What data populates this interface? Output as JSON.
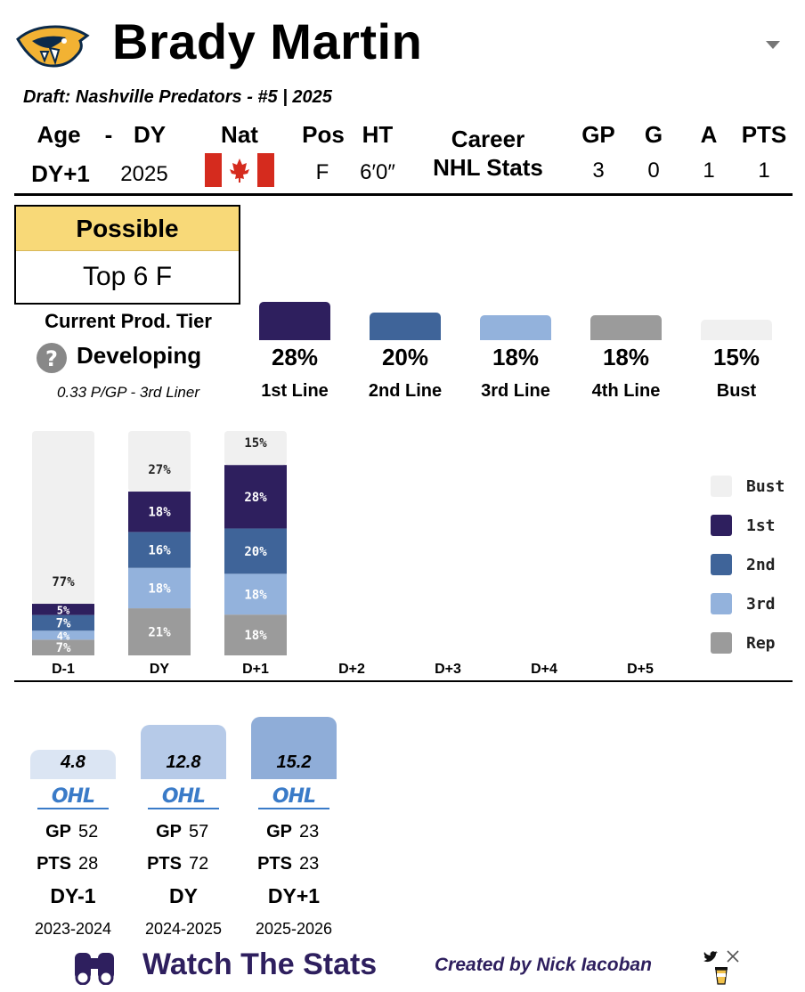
{
  "header": {
    "player_name": "Brady Martin",
    "draft_line": "Draft: Nashville Predators - #5 | 2025",
    "team_logo_icon": "predators-logo-icon",
    "dropdown_icon": "chevron-down-icon"
  },
  "bio": {
    "age_label": "Age",
    "dash": "-",
    "dy_label": "DY",
    "age_value": "DY+1",
    "dy_value": "2025",
    "nat_label": "Nat",
    "nat_icon": "canada-flag-icon",
    "pos_label": "Pos",
    "pos_value": "F",
    "ht_label": "HT",
    "ht_value": "6′0″"
  },
  "career": {
    "label_line1": "Career",
    "label_line2": "NHL Stats",
    "headers": [
      "GP",
      "G",
      "A",
      "PTS"
    ],
    "values": [
      "3",
      "0",
      "1",
      "1"
    ]
  },
  "possible": {
    "label": "Possible",
    "value": "Top 6 F"
  },
  "prod_tier": {
    "label": "Current Prod. Tier",
    "status_icon": "question-circle-icon",
    "status": "Developing",
    "detail": "0.33 P/GP - 3rd Liner"
  },
  "tier_probs": [
    {
      "label": "1st Line",
      "pct_text": "28%",
      "value": 28,
      "color": "#2e1f5e"
    },
    {
      "label": "2nd Line",
      "pct_text": "20%",
      "value": 20,
      "color": "#3f6499"
    },
    {
      "label": "3rd Line",
      "pct_text": "18%",
      "value": 18,
      "color": "#93b2dc"
    },
    {
      "label": "4th Line",
      "pct_text": "18%",
      "value": 18,
      "color": "#9b9b9b"
    },
    {
      "label": "Bust",
      "pct_text": "15%",
      "value": 15,
      "color": "#f0f0f0"
    }
  ],
  "chart_data": {
    "type": "bar",
    "stacked": true,
    "title": "",
    "categories": [
      "D-1",
      "DY",
      "D+1",
      "D+2",
      "D+3",
      "D+4",
      "D+5"
    ],
    "series": [
      {
        "name": "Rep",
        "color": "#9b9b9b",
        "values": [
          7,
          21,
          18,
          null,
          null,
          null,
          null
        ],
        "labels": [
          "7%",
          "21%",
          "18%",
          "",
          "",
          "",
          ""
        ]
      },
      {
        "name": "3rd",
        "color": "#93b2dc",
        "values": [
          4,
          18,
          18,
          null,
          null,
          null,
          null
        ],
        "labels": [
          "4%",
          "18%",
          "18%",
          "",
          "",
          "",
          ""
        ]
      },
      {
        "name": "2nd",
        "color": "#3f6499",
        "values": [
          7,
          16,
          20,
          null,
          null,
          null,
          null
        ],
        "labels": [
          "7%",
          "16%",
          "20%",
          "",
          "",
          "",
          ""
        ]
      },
      {
        "name": "1st",
        "color": "#2e1f5e",
        "values": [
          5,
          18,
          28,
          null,
          null,
          null,
          null
        ],
        "labels": [
          "5%",
          "18%",
          "28%",
          "",
          "",
          "",
          ""
        ]
      },
      {
        "name": "Bust",
        "color": "#f0f0f0",
        "values": [
          77,
          27,
          15,
          null,
          null,
          null,
          null
        ],
        "labels": [
          "77%",
          "27%",
          "15%",
          "",
          "",
          "",
          ""
        ]
      }
    ],
    "legend": [
      "Bust",
      "1st",
      "2nd",
      "3rd",
      "Rep"
    ],
    "legend_position": "right",
    "ylim": [
      0,
      100
    ]
  },
  "seasons": [
    {
      "score": "4.8",
      "score_value": 4.8,
      "league": "OHL",
      "gp_label": "GP",
      "gp": "52",
      "pts_label": "PTS",
      "pts": "28",
      "dy": "DY-1",
      "years": "2023-2024",
      "color": "#dbe5f3"
    },
    {
      "score": "12.8",
      "score_value": 12.8,
      "league": "OHL",
      "gp_label": "GP",
      "gp": "57",
      "pts_label": "PTS",
      "pts": "72",
      "dy": "DY",
      "years": "2024-2025",
      "color": "#b6cae8"
    },
    {
      "score": "15.2",
      "score_value": 15.2,
      "league": "OHL",
      "gp_label": "GP",
      "gp": "23",
      "pts_label": "PTS",
      "pts": "23",
      "dy": "DY+1",
      "years": "2025-2026",
      "color": "#8fadd8"
    }
  ],
  "footer": {
    "binoculars_icon": "binoculars-icon",
    "brand": "Watch The Stats",
    "credit": "Created by Nick Iacoban",
    "twitter_icon": "twitter-bird-icon",
    "x_icon": "x-logo-icon",
    "coffee_icon": "coffee-cup-icon"
  }
}
